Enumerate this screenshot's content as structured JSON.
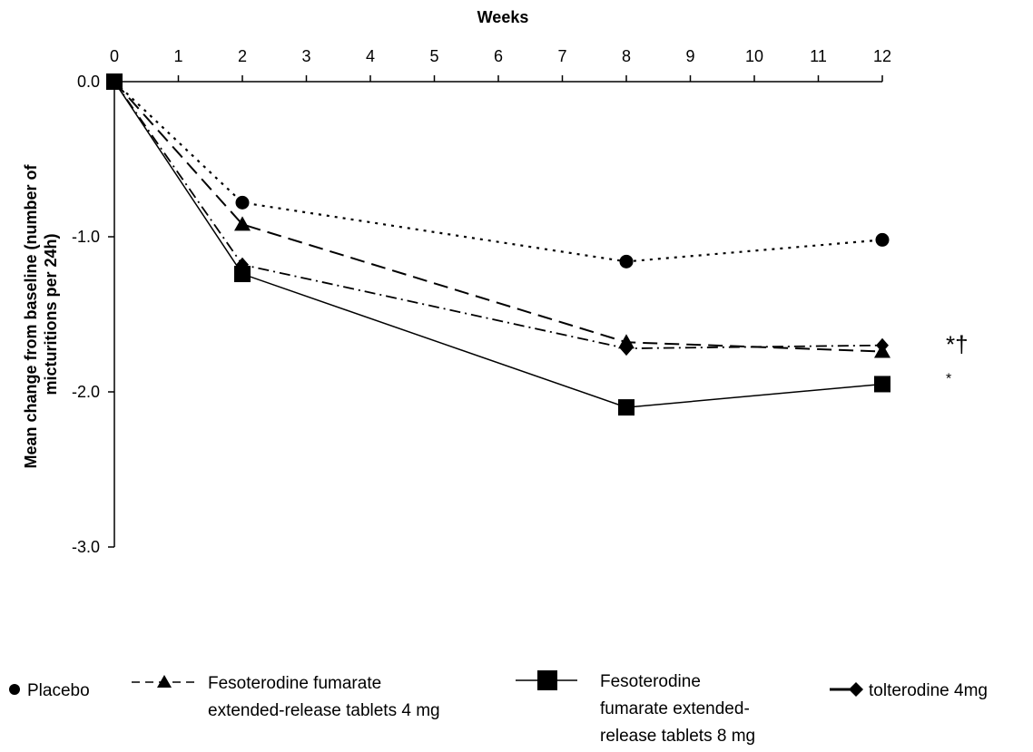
{
  "chart_data": {
    "type": "line",
    "xlabel": "Weeks",
    "ylabel_line1": "Mean change from baseline (number of",
    "ylabel_line2": "micturitions per 24h)",
    "x_ticks": [
      0,
      1,
      2,
      3,
      4,
      5,
      6,
      7,
      8,
      9,
      10,
      11,
      12
    ],
    "y_ticks": [
      "0.0",
      "-1.0",
      "-2.0",
      "-3.0"
    ],
    "y_tick_values": [
      0,
      -1,
      -2,
      -3
    ],
    "xlim": [
      0,
      12
    ],
    "ylim": [
      -3.0,
      0.0
    ],
    "x_axis_position": "top",
    "grid": false,
    "legend_placement": "bottom",
    "x": [
      0,
      2,
      8,
      12
    ],
    "series": [
      {
        "name": "Placebo",
        "values": [
          0,
          -0.78,
          -1.16,
          -1.02
        ],
        "marker": "circle",
        "dash": "dotted"
      },
      {
        "name": "Fesoterodine fumarate extended-release tablets 4 mg",
        "values": [
          0,
          -0.92,
          -1.68,
          -1.74
        ],
        "marker": "triangle",
        "dash": "dashed"
      },
      {
        "name": "Fesoterodine fumarate extended-release tablets 8 mg",
        "values": [
          0,
          -1.24,
          -2.1,
          -1.95
        ],
        "marker": "square",
        "dash": "solid"
      },
      {
        "name": "tolterodine 4mg",
        "values": [
          0,
          -1.18,
          -1.72,
          -1.7
        ],
        "marker": "diamond",
        "dash": "dashdot"
      }
    ],
    "annotations": [
      {
        "text": "*†",
        "y": -1.74
      },
      {
        "text": "*",
        "y": -1.95
      }
    ]
  },
  "legend": {
    "placebo": [
      "Placebo"
    ],
    "feso4": [
      "Fesoterodine fumarate",
      "extended-release tablets 4 mg"
    ],
    "feso8": [
      "Fesoterodine",
      "fumarate extended-",
      "release tablets 8 mg"
    ],
    "tolt": [
      "tolterodine 4mg"
    ]
  }
}
